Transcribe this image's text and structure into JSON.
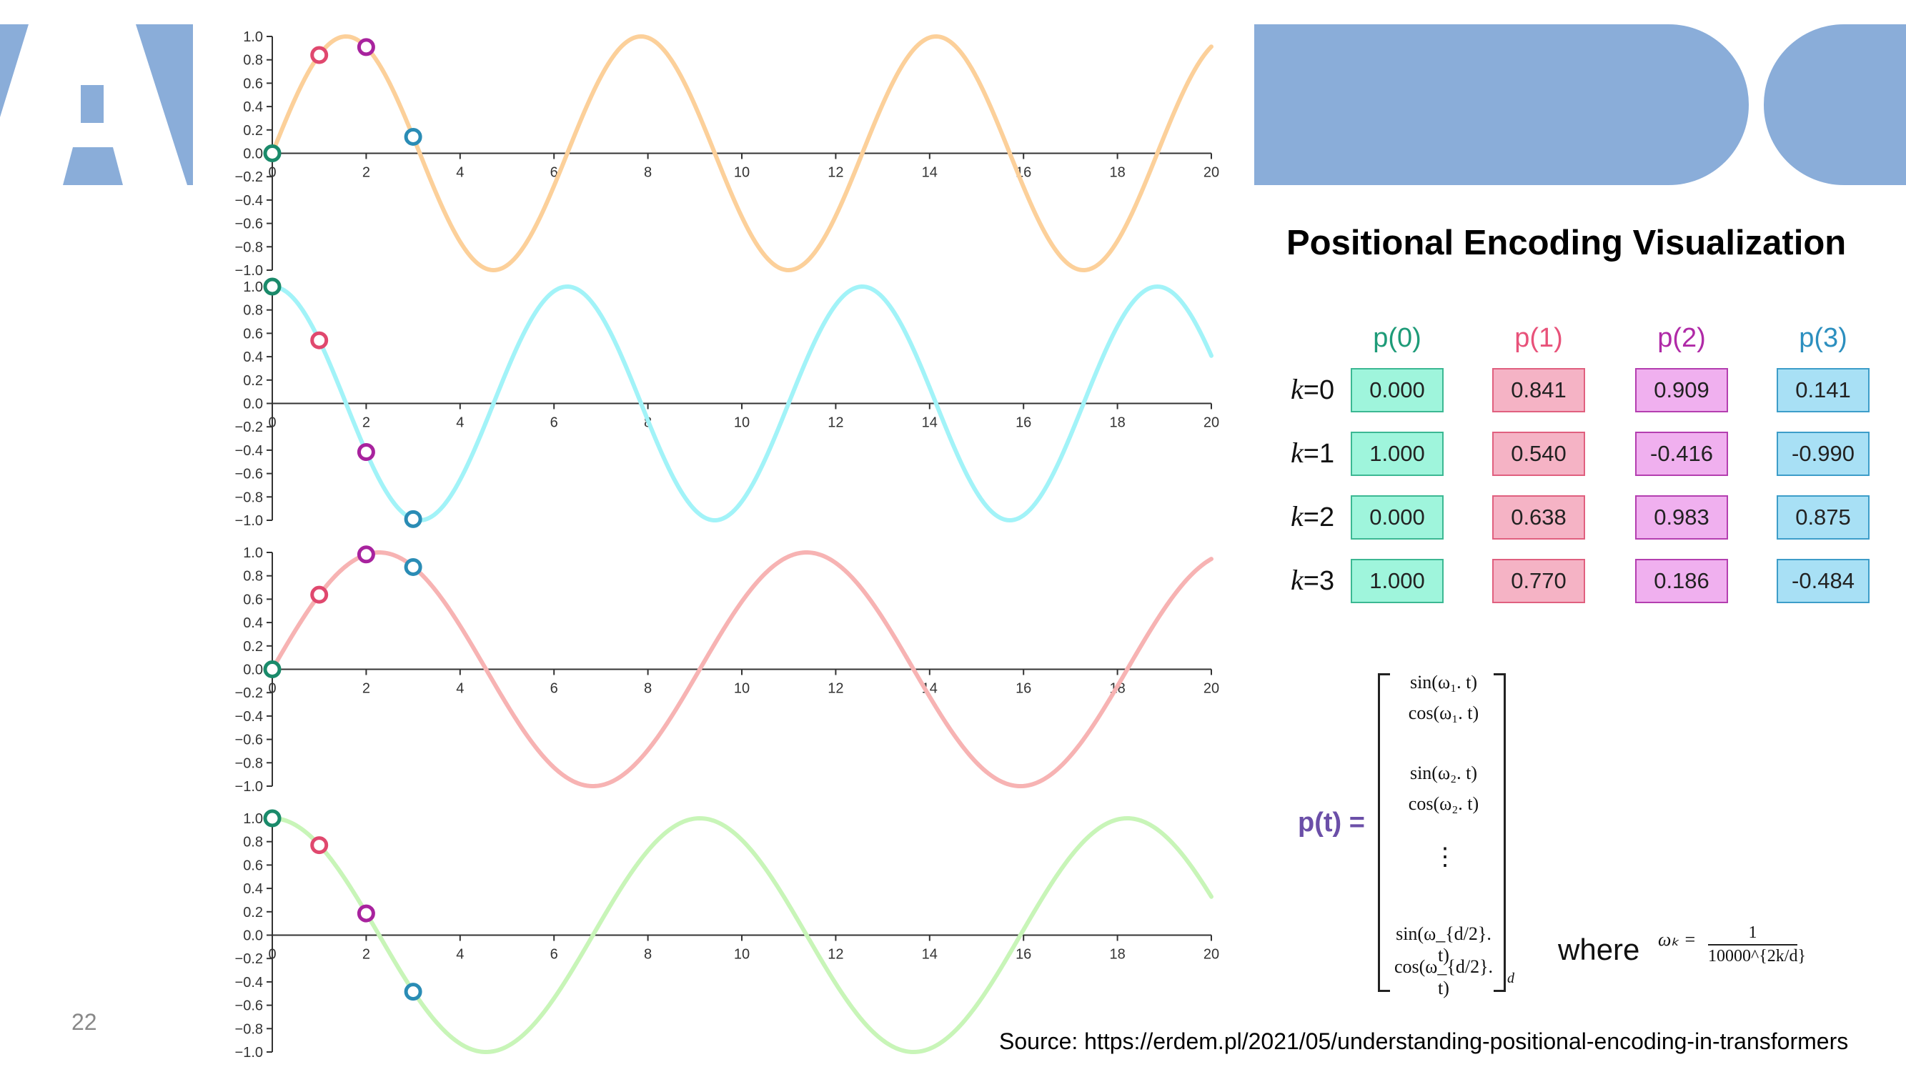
{
  "page_number": "22",
  "deco_letter": "A",
  "title": "Positional Encoding Visualization",
  "table": {
    "columns": [
      {
        "label": "p(0)",
        "color": "#1e9b78",
        "fill": "#9ff5dc",
        "border": "#3cb893"
      },
      {
        "label": "p(1)",
        "color": "#e8527a",
        "fill": "#f5b3c5",
        "border": "#e0607f"
      },
      {
        "label": "p(2)",
        "color": "#b02aa7",
        "fill": "#f0b0ef",
        "border": "#b43fb0"
      },
      {
        "label": "p(3)",
        "color": "#2c8fbf",
        "fill": "#a8e0f5",
        "border": "#3d9dc9"
      }
    ],
    "rows": [
      {
        "k": "k",
        "eq": "=0",
        "values": [
          "0.000",
          "0.841",
          "0.909",
          "0.141"
        ]
      },
      {
        "k": "k",
        "eq": "=1",
        "values": [
          "1.000",
          "0.540",
          "-0.416",
          "-0.990"
        ]
      },
      {
        "k": "k",
        "eq": "=2",
        "values": [
          "0.000",
          "0.638",
          "0.983",
          "0.875"
        ]
      },
      {
        "k": "k",
        "eq": "=3",
        "values": [
          "1.000",
          "0.770",
          "0.186",
          "-0.484"
        ]
      }
    ]
  },
  "formula": {
    "lhs": "p(t) =",
    "entries": [
      "sin(ω₁. t)",
      "cos(ω₁. t)",
      "sin(ω₂. t)",
      "cos(ω₂. t)",
      "⋮",
      "sin(ω_{d/2}. t)",
      "cos(ω_{d/2}. t)"
    ],
    "subscript": "d",
    "where": "where",
    "omega": "ωₖ =",
    "numerator": "1",
    "denominator": "10000^{2k/d}"
  },
  "source": "Source: https://erdem.pl/2021/05/understanding-positional-encoding-in-transformers",
  "chart_data": [
    {
      "type": "line",
      "name": "k=0 sin(t)",
      "func": "sin",
      "omega": 1.0,
      "color": "#fcd09a",
      "xlim": [
        0,
        20
      ],
      "ylim": [
        -1.0,
        1.0
      ],
      "x_ticks": [
        "0",
        "2",
        "4",
        "6",
        "8",
        "10",
        "12",
        "14",
        "16",
        "18",
        "20"
      ],
      "y_ticks": [
        "1.0",
        "0.8",
        "0.6",
        "0.4",
        "0.2",
        "0.0",
        "−0.2",
        "−0.4",
        "−0.6",
        "−0.8",
        "−1.0"
      ],
      "markers": [
        {
          "x": 0,
          "y": 0.0
        },
        {
          "x": 1,
          "y": 0.841
        },
        {
          "x": 2,
          "y": 0.909
        },
        {
          "x": 3,
          "y": 0.141
        }
      ]
    },
    {
      "type": "line",
      "name": "k=1 cos(t)",
      "func": "cos",
      "omega": 1.0,
      "color": "#a2f3f8",
      "xlim": [
        0,
        20
      ],
      "ylim": [
        -1.0,
        1.0
      ],
      "x_ticks": [
        "0",
        "2",
        "4",
        "6",
        "8",
        "10",
        "12",
        "14",
        "16",
        "18",
        "20"
      ],
      "y_ticks": [
        "1.0",
        "0.8",
        "0.6",
        "0.4",
        "0.2",
        "0.0",
        "−0.2",
        "−0.4",
        "−0.6",
        "−0.8",
        "−1.0"
      ],
      "markers": [
        {
          "x": 0,
          "y": 1.0
        },
        {
          "x": 1,
          "y": 0.54
        },
        {
          "x": 2,
          "y": -0.416
        },
        {
          "x": 3,
          "y": -0.99
        }
      ]
    },
    {
      "type": "line",
      "name": "k=2 sin(ωt)",
      "func": "sin",
      "omega": 0.6901,
      "color": "#f7b3b3",
      "xlim": [
        0,
        20
      ],
      "ylim": [
        -1.0,
        1.0
      ],
      "x_ticks": [
        "0",
        "2",
        "4",
        "6",
        "8",
        "10",
        "12",
        "14",
        "16",
        "18",
        "20"
      ],
      "y_ticks": [
        "1.0",
        "0.8",
        "0.6",
        "0.4",
        "0.2",
        "0.0",
        "−0.2",
        "−0.4",
        "−0.6",
        "−0.8",
        "−1.0"
      ],
      "markers": [
        {
          "x": 0,
          "y": 0.0
        },
        {
          "x": 1,
          "y": 0.638
        },
        {
          "x": 2,
          "y": 0.983
        },
        {
          "x": 3,
          "y": 0.875
        }
      ]
    },
    {
      "type": "line",
      "name": "k=3 cos(ωt)",
      "func": "cos",
      "omega": 0.6901,
      "color": "#c8f5b8",
      "xlim": [
        0,
        20
      ],
      "ylim": [
        -1.0,
        1.0
      ],
      "x_ticks": [
        "0",
        "2",
        "4",
        "6",
        "8",
        "10",
        "12",
        "14",
        "16",
        "18",
        "20"
      ],
      "y_ticks": [
        "1.0",
        "0.8",
        "0.6",
        "0.4",
        "0.2",
        "0.0",
        "−0.2",
        "−0.4",
        "−0.6",
        "−0.8",
        "−1.0"
      ],
      "markers": [
        {
          "x": 0,
          "y": 1.0
        },
        {
          "x": 1,
          "y": 0.77
        },
        {
          "x": 2,
          "y": 0.186
        },
        {
          "x": 3,
          "y": -0.484
        }
      ]
    }
  ],
  "marker_colors": [
    "#1a8a6a",
    "#e0486e",
    "#a8239e",
    "#2a8cb5"
  ]
}
